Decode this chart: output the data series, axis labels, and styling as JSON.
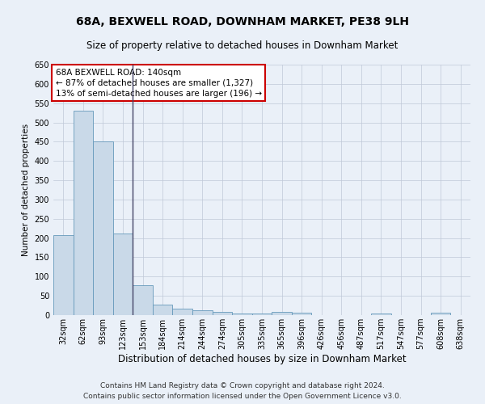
{
  "title": "68A, BEXWELL ROAD, DOWNHAM MARKET, PE38 9LH",
  "subtitle": "Size of property relative to detached houses in Downham Market",
  "xlabel": "Distribution of detached houses by size in Downham Market",
  "ylabel": "Number of detached properties",
  "footer_line1": "Contains HM Land Registry data © Crown copyright and database right 2024.",
  "footer_line2": "Contains public sector information licensed under the Open Government Licence v3.0.",
  "categories": [
    "32sqm",
    "62sqm",
    "93sqm",
    "123sqm",
    "153sqm",
    "184sqm",
    "214sqm",
    "244sqm",
    "274sqm",
    "305sqm",
    "335sqm",
    "365sqm",
    "396sqm",
    "426sqm",
    "456sqm",
    "487sqm",
    "517sqm",
    "547sqm",
    "577sqm",
    "608sqm",
    "638sqm"
  ],
  "values": [
    207,
    530,
    450,
    212,
    78,
    27,
    16,
    13,
    8,
    5,
    5,
    8,
    6,
    0,
    0,
    0,
    5,
    0,
    0,
    6,
    0
  ],
  "bar_color": "#c9d9e8",
  "bar_edge_color": "#6699bb",
  "grid_color": "#c0c8d8",
  "background_color": "#eaf0f8",
  "annotation_box_text": "68A BEXWELL ROAD: 140sqm\n← 87% of detached houses are smaller (1,327)\n13% of semi-detached houses are larger (196) →",
  "annotation_box_color": "#ffffff",
  "annotation_box_edge_color": "#cc0000",
  "vline_x_index": 3.5,
  "ylim": [
    0,
    650
  ],
  "yticks": [
    0,
    50,
    100,
    150,
    200,
    250,
    300,
    350,
    400,
    450,
    500,
    550,
    600,
    650
  ],
  "title_fontsize": 10,
  "subtitle_fontsize": 8.5,
  "xlabel_fontsize": 8.5,
  "ylabel_fontsize": 7.5,
  "tick_fontsize": 7,
  "footer_fontsize": 6.5,
  "annot_fontsize": 7.5
}
